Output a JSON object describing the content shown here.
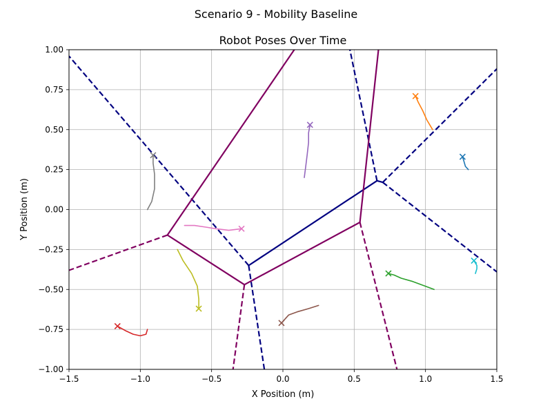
{
  "chart_data": {
    "type": "line",
    "suptitle": "Scenario 9 - Mobility Baseline",
    "title": "Robot Poses Over Time",
    "xlabel": "X Position (m)",
    "ylabel": "Y Position (m)",
    "xlim": [
      -1.5,
      1.5
    ],
    "ylim": [
      -1.0,
      1.0
    ],
    "xticks": [
      -1.5,
      -1.0,
      -0.5,
      0.0,
      0.5,
      1.0,
      1.5
    ],
    "xtick_labels": [
      "−1.5",
      "−1.0",
      "−0.5",
      "0.0",
      "0.5",
      "1.0",
      "1.5"
    ],
    "yticks": [
      -1.0,
      -0.75,
      -0.5,
      -0.25,
      0.0,
      0.25,
      0.5,
      0.75,
      1.0
    ],
    "ytick_labels": [
      "−1.00",
      "−0.75",
      "−0.50",
      "−0.25",
      "0.00",
      "0.25",
      "0.50",
      "0.75",
      "1.00"
    ],
    "grid": true,
    "graph_lines": [
      {
        "color": "#000080",
        "style": "solid",
        "points": [
          [
            -0.24,
            -0.35
          ],
          [
            0.66,
            0.18
          ]
        ]
      },
      {
        "color": "#000080",
        "style": "solid",
        "points": [
          [
            0.66,
            0.18
          ],
          [
            0.7,
            0.17
          ]
        ]
      },
      {
        "color": "#000080",
        "style": "dashed",
        "points": [
          [
            -0.24,
            -0.35
          ],
          [
            -1.5,
            0.96
          ]
        ]
      },
      {
        "color": "#000080",
        "style": "dashed",
        "points": [
          [
            -0.24,
            -0.35
          ],
          [
            -0.13,
            -1.0
          ]
        ]
      },
      {
        "color": "#000080",
        "style": "dashed",
        "points": [
          [
            0.66,
            0.18
          ],
          [
            0.47,
            1.0
          ]
        ]
      },
      {
        "color": "#000080",
        "style": "dashed",
        "points": [
          [
            0.7,
            0.17
          ],
          [
            1.5,
            0.88
          ]
        ]
      },
      {
        "color": "#000080",
        "style": "dashed",
        "points": [
          [
            0.7,
            0.17
          ],
          [
            1.5,
            -0.39
          ]
        ]
      },
      {
        "color": "#800060",
        "style": "solid",
        "points": [
          [
            -0.81,
            -0.16
          ],
          [
            -0.27,
            -0.47
          ]
        ]
      },
      {
        "color": "#800060",
        "style": "solid",
        "points": [
          [
            -0.27,
            -0.47
          ],
          [
            0.54,
            -0.08
          ]
        ]
      },
      {
        "color": "#800060",
        "style": "solid",
        "points": [
          [
            -0.81,
            -0.16
          ],
          [
            0.08,
            1.0
          ]
        ]
      },
      {
        "color": "#800060",
        "style": "solid",
        "points": [
          [
            0.54,
            -0.08
          ],
          [
            0.67,
            1.0
          ]
        ]
      },
      {
        "color": "#800060",
        "style": "dashed",
        "points": [
          [
            -0.81,
            -0.16
          ],
          [
            -1.5,
            -0.38
          ]
        ]
      },
      {
        "color": "#800060",
        "style": "dashed",
        "points": [
          [
            -0.27,
            -0.47
          ],
          [
            -0.35,
            -1.0
          ]
        ]
      },
      {
        "color": "#800060",
        "style": "dashed",
        "points": [
          [
            0.54,
            -0.08
          ],
          [
            0.8,
            -1.0
          ]
        ]
      }
    ],
    "series": [
      {
        "color": "#1f77b4",
        "points": [
          [
            1.3,
            0.25
          ],
          [
            1.28,
            0.27
          ],
          [
            1.27,
            0.3
          ],
          [
            1.26,
            0.33
          ]
        ]
      },
      {
        "color": "#ff7f0e",
        "points": [
          [
            1.05,
            0.5
          ],
          [
            1.01,
            0.56
          ],
          [
            0.98,
            0.62
          ],
          [
            0.95,
            0.67
          ],
          [
            0.93,
            0.71
          ]
        ]
      },
      {
        "color": "#2ca02c",
        "points": [
          [
            1.06,
            -0.5
          ],
          [
            1.0,
            -0.48
          ],
          [
            0.91,
            -0.45
          ],
          [
            0.83,
            -0.43
          ],
          [
            0.78,
            -0.41
          ],
          [
            0.74,
            -0.4
          ]
        ]
      },
      {
        "color": "#d62728",
        "points": [
          [
            -0.95,
            -0.75
          ],
          [
            -0.96,
            -0.78
          ],
          [
            -1.0,
            -0.79
          ],
          [
            -1.05,
            -0.78
          ],
          [
            -1.1,
            -0.76
          ],
          [
            -1.16,
            -0.73
          ]
        ]
      },
      {
        "color": "#9467bd",
        "points": [
          [
            0.15,
            0.2
          ],
          [
            0.16,
            0.27
          ],
          [
            0.17,
            0.34
          ],
          [
            0.18,
            0.42
          ],
          [
            0.18,
            0.48
          ],
          [
            0.19,
            0.53
          ]
        ]
      },
      {
        "color": "#8c564b",
        "points": [
          [
            0.25,
            -0.6
          ],
          [
            0.18,
            -0.62
          ],
          [
            0.1,
            -0.64
          ],
          [
            0.04,
            -0.66
          ],
          [
            0.01,
            -0.69
          ],
          [
            -0.01,
            -0.71
          ]
        ]
      },
      {
        "color": "#e377c2",
        "points": [
          [
            -0.69,
            -0.1
          ],
          [
            -0.62,
            -0.1
          ],
          [
            -0.54,
            -0.11
          ],
          [
            -0.47,
            -0.12
          ],
          [
            -0.38,
            -0.13
          ],
          [
            -0.29,
            -0.12
          ]
        ]
      },
      {
        "color": "#7f7f7f",
        "points": [
          [
            -0.95,
            0.0
          ],
          [
            -0.92,
            0.05
          ],
          [
            -0.9,
            0.13
          ],
          [
            -0.9,
            0.22
          ],
          [
            -0.91,
            0.29
          ],
          [
            -0.91,
            0.34
          ]
        ]
      },
      {
        "color": "#bcbd22",
        "points": [
          [
            -0.74,
            -0.25
          ],
          [
            -0.7,
            -0.32
          ],
          [
            -0.64,
            -0.4
          ],
          [
            -0.6,
            -0.48
          ],
          [
            -0.59,
            -0.56
          ],
          [
            -0.59,
            -0.62
          ]
        ]
      },
      {
        "color": "#17becf",
        "points": [
          [
            1.35,
            -0.4
          ],
          [
            1.36,
            -0.37
          ],
          [
            1.36,
            -0.35
          ],
          [
            1.34,
            -0.32
          ]
        ]
      }
    ]
  }
}
